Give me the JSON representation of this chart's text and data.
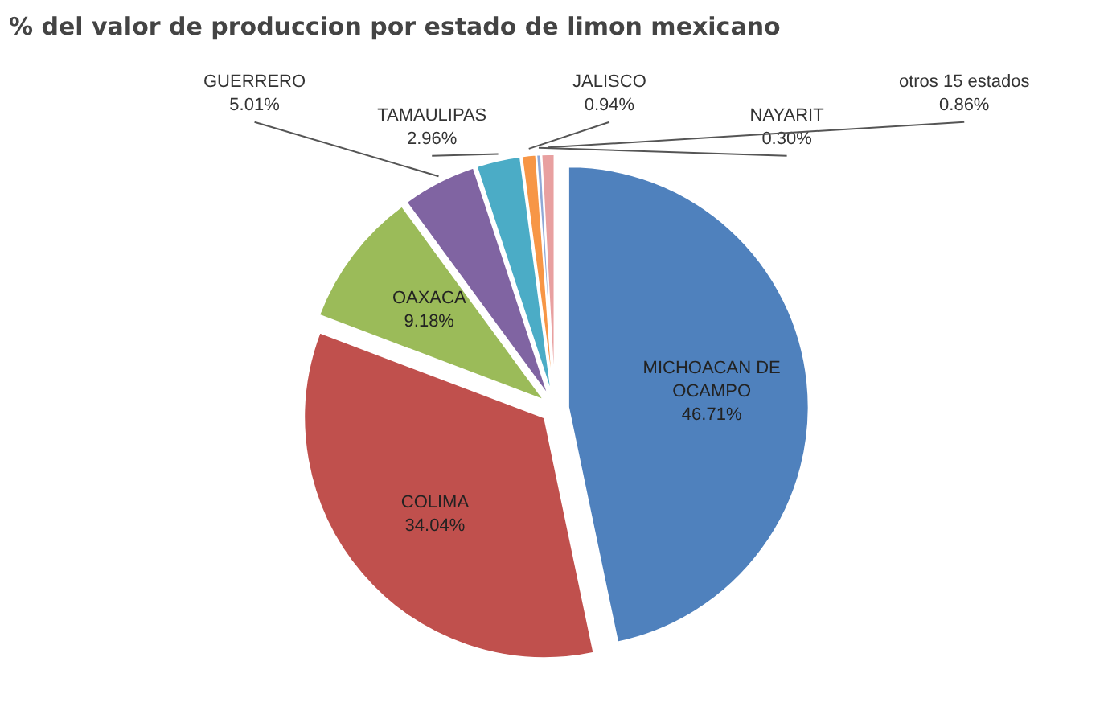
{
  "chart_data": {
    "type": "pie",
    "title": "% del valor de produccion por estado de limon mexicano",
    "categories": [
      "MICHOACAN DE OCAMPO",
      "COLIMA",
      "OAXACA",
      "GUERRERO",
      "TAMAULIPAS",
      "JALISCO",
      "NAYARIT",
      "otros 15 estados"
    ],
    "values": [
      46.71,
      34.04,
      9.18,
      5.01,
      2.96,
      0.94,
      0.3,
      0.86
    ],
    "value_labels": [
      "46.71%",
      "34.04%",
      "9.18%",
      "5.01%",
      "2.96%",
      "0.94%",
      "0.30%",
      "0.86%"
    ],
    "colors": [
      "#4f81bd",
      "#c0504d",
      "#9bbb59",
      "#8064a2",
      "#4bacc6",
      "#f79646",
      "#8fa8d6",
      "#e8a0a0"
    ]
  }
}
